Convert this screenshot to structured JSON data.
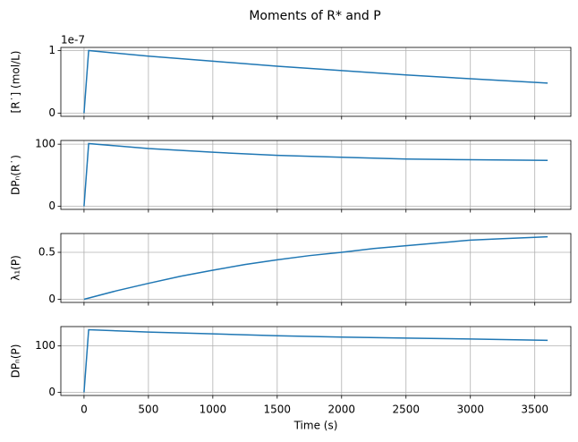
{
  "title": "Moments of R* and P",
  "chart_data": [
    {
      "type": "line",
      "ylabel": "[R˙] (mol/L)",
      "offset_text": "1e-7",
      "x": [
        0,
        36,
        500,
        1000,
        1500,
        2000,
        2500,
        3000,
        3600
      ],
      "series": [
        {
          "color": "#1f77b4",
          "values": [
            0,
            1.0,
            0.91,
            0.83,
            0.75,
            0.68,
            0.61,
            0.55,
            0.48
          ]
        }
      ],
      "xlim": [
        -180,
        3780
      ],
      "ylim": [
        -0.05,
        1.05
      ],
      "yticks": [
        0,
        1
      ],
      "grid": true
    },
    {
      "type": "line",
      "ylabel": "DPₙ(R˙)",
      "x": [
        0,
        36,
        500,
        1000,
        1500,
        2000,
        2500,
        3000,
        3600
      ],
      "series": [
        {
          "color": "#1f77b4",
          "values": [
            0,
            101,
            93,
            87,
            82,
            79,
            76,
            75,
            74
          ]
        }
      ],
      "xlim": [
        -180,
        3780
      ],
      "ylim": [
        -5,
        106
      ],
      "yticks": [
        0,
        100
      ],
      "grid": true
    },
    {
      "type": "line",
      "ylabel": "λ₁(P)",
      "x": [
        0,
        250,
        500,
        750,
        1000,
        1250,
        1500,
        1750,
        2000,
        2250,
        2500,
        2750,
        3000,
        3250,
        3500,
        3600
      ],
      "series": [
        {
          "color": "#1f77b4",
          "values": [
            0,
            0.09,
            0.17,
            0.245,
            0.31,
            0.37,
            0.42,
            0.465,
            0.5,
            0.54,
            0.57,
            0.6,
            0.63,
            0.645,
            0.66,
            0.665
          ]
        }
      ],
      "xlim": [
        -180,
        3780
      ],
      "ylim": [
        -0.033,
        0.7
      ],
      "yticks": [
        0,
        0.5
      ],
      "grid": true
    },
    {
      "type": "line",
      "ylabel": "DPₙ(P)",
      "xlabel": "Time (s)",
      "x": [
        0,
        36,
        500,
        1000,
        1500,
        2000,
        2500,
        3000,
        3600
      ],
      "series": [
        {
          "color": "#1f77b4",
          "values": [
            0,
            135,
            130,
            126,
            122,
            119,
            117,
            115,
            112
          ]
        }
      ],
      "xlim": [
        -180,
        3780
      ],
      "ylim": [
        -6.75,
        141.75
      ],
      "yticks": [
        0,
        100
      ],
      "xticks": [
        0,
        500,
        1000,
        1500,
        2000,
        2500,
        3000,
        3500
      ],
      "grid": true
    }
  ]
}
